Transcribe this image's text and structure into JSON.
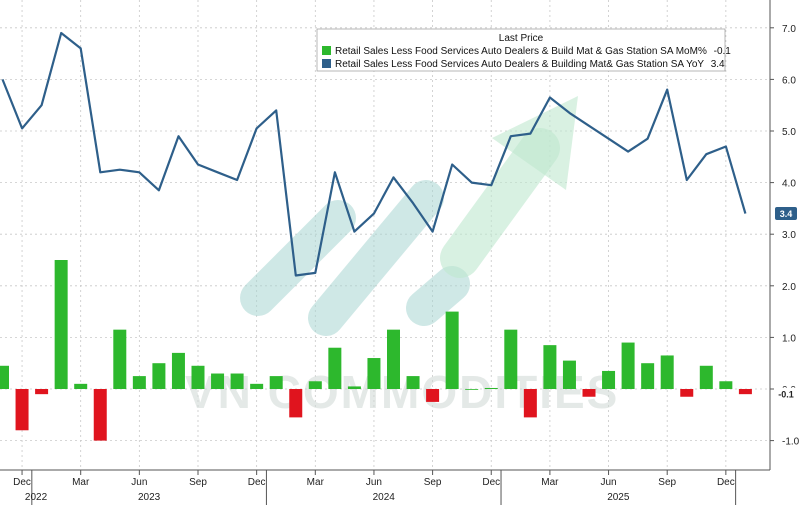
{
  "chart_data": {
    "type": "bar+line",
    "legend": {
      "title": "Last Price",
      "placement": "top-right",
      "entries": [
        {
          "label": "Retail Sales Less Food Services Auto Dealers & Build Mat & Gas Station SA MoM%",
          "last": "-0.1",
          "color": "#2db82d"
        },
        {
          "label": "Retail Sales Less Food Services Auto Dealers & Building Mat& Gas Station SA YoY",
          "last": "3.4",
          "color": "#2e5f8a"
        }
      ]
    },
    "x_ticks": [
      "Dec",
      "Mar",
      "Jun",
      "Sep",
      "Dec",
      "Mar",
      "Jun",
      "Sep",
      "Dec",
      "Mar",
      "Jun",
      "Sep",
      "Dec"
    ],
    "year_labels": [
      "2022",
      "2023",
      "2024",
      "2025"
    ],
    "y_ticks": [
      "7.0",
      "6.0",
      "5.0",
      "4.0",
      "3.0",
      "2.0",
      "1.0",
      "0.0",
      "-1.0"
    ],
    "ylim": [
      -1.6,
      7.4
    ],
    "months": [
      "2021-11",
      "2021-12",
      "2022-01",
      "2022-02",
      "2022-03",
      "2022-04",
      "2022-05",
      "2022-06",
      "2022-07",
      "2022-08",
      "2022-09",
      "2022-10",
      "2022-11",
      "2022-12",
      "2023-01",
      "2023-02",
      "2023-03",
      "2023-04",
      "2023-05",
      "2023-06",
      "2023-07",
      "2023-08",
      "2023-09",
      "2023-10",
      "2023-11",
      "2023-12",
      "2024-01",
      "2024-02",
      "2024-03",
      "2024-04",
      "2024-05",
      "2024-06",
      "2024-07",
      "2024-08",
      "2024-09",
      "2024-10",
      "2024-11",
      "2024-12",
      "2025-01"
    ],
    "series": [
      {
        "name": "Retail Sales Less Food Services Auto Dealers & Build Mat & Gas Station SA MoM%",
        "type": "bar",
        "values": [
          0.45,
          -0.8,
          -0.1,
          2.5,
          0.1,
          -1.0,
          1.15,
          0.25,
          0.5,
          0.7,
          0.45,
          0.3,
          0.3,
          0.1,
          0.25,
          -0.55,
          0.15,
          0.8,
          0.05,
          0.6,
          1.15,
          0.25,
          -0.25,
          1.5,
          0.0,
          0.02,
          1.15,
          -0.55,
          0.85,
          0.55,
          -0.15,
          0.35,
          0.9,
          0.5,
          0.65,
          -0.15,
          0.45,
          0.15,
          -0.1
        ]
      },
      {
        "name": "Retail Sales Less Food Services Auto Dealers & Building Mat& Gas Station SA YoY",
        "type": "line",
        "values": [
          6.0,
          5.05,
          5.5,
          6.9,
          6.6,
          4.2,
          4.25,
          4.2,
          3.85,
          4.9,
          4.35,
          4.2,
          4.05,
          5.05,
          5.4,
          2.2,
          2.25,
          4.2,
          3.05,
          3.4,
          4.1,
          3.6,
          3.05,
          4.35,
          4.0,
          3.95,
          4.9,
          4.95,
          5.65,
          5.35,
          5.1,
          4.85,
          4.6,
          4.85,
          5.8,
          4.05,
          4.55,
          4.7,
          3.4
        ]
      }
    ],
    "grid": true,
    "last_value_badges": [
      {
        "value": "3.4",
        "bg": "#2e5f8a",
        "fg": "#ffffff"
      },
      {
        "value": "-0.1",
        "bg": "#ffffff",
        "fg": "#222222"
      }
    ],
    "watermark": "VN COMMODITIES"
  }
}
